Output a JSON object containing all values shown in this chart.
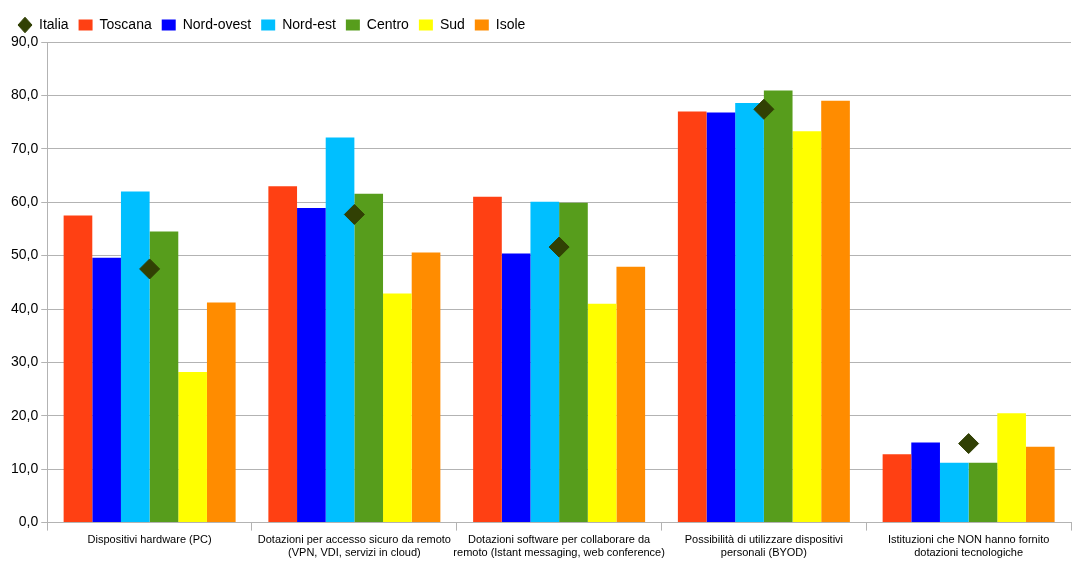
{
  "chart_data": {
    "type": "bar",
    "categories": [
      "Dispositivi hardware (PC)",
      "Dotazioni per accesso sicuro da remoto (VPN, VDI, servizi in cloud)",
      "Dotazioni software per collaborare da remoto (Istant messaging, web conference)",
      "Possibilità di utilizzare dispositivi personali (BYOD)",
      "Istituzioni che NON hanno fornito dotazioni tecnologiche"
    ],
    "series": [
      {
        "name": "Toscana",
        "color": "#ff4013",
        "values": [
          57.5,
          63.0,
          61.0,
          77.0,
          12.8
        ]
      },
      {
        "name": "Nord-ovest",
        "color": "#0000ff",
        "values": [
          49.6,
          58.9,
          50.4,
          76.8,
          15.0
        ]
      },
      {
        "name": "Nord-est",
        "color": "#00bfff",
        "values": [
          62.0,
          72.1,
          60.1,
          78.6,
          11.2
        ]
      },
      {
        "name": "Centro",
        "color": "#579d1c",
        "values": [
          54.5,
          61.6,
          59.9,
          80.9,
          11.2
        ]
      },
      {
        "name": "Sud",
        "color": "#ffff00",
        "values": [
          28.2,
          42.9,
          41.0,
          73.3,
          20.5
        ]
      },
      {
        "name": "Isole",
        "color": "#ff8c00",
        "values": [
          41.2,
          50.6,
          47.9,
          79.0,
          14.2
        ]
      },
      {
        "name": "Italia",
        "color": "#314004",
        "type": "scatter",
        "marker": "diamond",
        "values": [
          47.5,
          57.7,
          51.6,
          77.4,
          14.8
        ]
      }
    ],
    "ylim": [
      0,
      90
    ],
    "yticks": [
      {
        "value": 0,
        "label": "0,0"
      },
      {
        "value": 10,
        "label": "10,0"
      },
      {
        "value": 20,
        "label": "20,0"
      },
      {
        "value": 30,
        "label": "30,0"
      },
      {
        "value": 40,
        "label": "40,0"
      },
      {
        "value": 50,
        "label": "50,0"
      },
      {
        "value": 60,
        "label": "60,0"
      },
      {
        "value": 70,
        "label": "70,0"
      },
      {
        "value": 80,
        "label": "80,0"
      },
      {
        "value": 90,
        "label": "90,0"
      }
    ],
    "grid": "y",
    "legend": "top left"
  }
}
